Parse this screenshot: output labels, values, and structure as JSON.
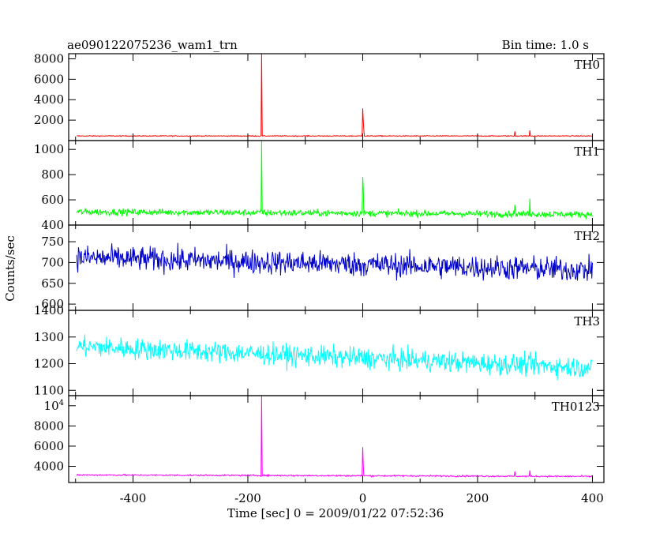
{
  "header": {
    "left": "ae090122075236_wam1_trn",
    "right": "Bin time: 1.0 s"
  },
  "chart_data": {
    "type": "line",
    "title": "ae090122075236_wam1_trn",
    "subtitle": "Bin time: 1.0 s",
    "xlabel": "Time [sec] 0 = 2009/01/22 07:52:36",
    "ylabel": "Counts/sec",
    "xlim": [
      -512,
      420
    ],
    "xticks": [
      "-400",
      "-200",
      "0",
      "200",
      "400"
    ],
    "xtick_values": [
      -400,
      -200,
      0,
      200,
      400
    ],
    "panels": [
      {
        "name": "TH0",
        "color": "#ff0000",
        "ylim": [
          0,
          8500
        ],
        "yticks": [
          "2000",
          "4000",
          "6000",
          "8000"
        ],
        "ytick_values": [
          2000,
          4000,
          6000,
          8000
        ],
        "baseline_start": 450,
        "baseline_end": 450,
        "noise": 40,
        "spikes": [
          [
            -176,
            8500
          ],
          [
            0,
            3150
          ],
          [
            1,
            2000
          ],
          [
            2,
            1000
          ],
          [
            265,
            900
          ],
          [
            291,
            1000
          ]
        ]
      },
      {
        "name": "TH1",
        "color": "#00ff00",
        "ylim": [
          400,
          1070
        ],
        "yticks": [
          "400",
          "600",
          "800",
          "1000"
        ],
        "ytick_values": [
          400,
          600,
          800,
          1000
        ],
        "baseline_start": 505,
        "baseline_end": 485,
        "noise": 25,
        "spikes": [
          [
            -176,
            1070
          ],
          [
            0,
            780
          ],
          [
            1,
            700
          ],
          [
            265,
            560
          ],
          [
            291,
            610
          ]
        ]
      },
      {
        "name": "TH2",
        "color": "#0000cd",
        "ylim": [
          585,
          790
        ],
        "yticks": [
          "600",
          "650",
          "700",
          "750"
        ],
        "ytick_values": [
          600,
          650,
          700,
          750
        ],
        "baseline_start": 712,
        "baseline_end": 682,
        "noise": 28,
        "spikes": []
      },
      {
        "name": "TH3",
        "color": "#00ffff",
        "ylim": [
          1080,
          1400
        ],
        "yticks": [
          "1100",
          "1200",
          "1300",
          "1400"
        ],
        "ytick_values": [
          1100,
          1200,
          1300,
          1400
        ],
        "baseline_start": 1265,
        "baseline_end": 1185,
        "noise": 38,
        "spikes": []
      },
      {
        "name": "TH0123",
        "color": "#ff00ff",
        "ylim": [
          2400,
          11000
        ],
        "yticks": [
          "4000",
          "6000",
          "8000",
          "10^4"
        ],
        "ytick_values": [
          4000,
          6000,
          8000,
          10000
        ],
        "baseline_start": 3150,
        "baseline_end": 3000,
        "noise": 70,
        "spikes": [
          [
            -176,
            11000
          ],
          [
            0,
            5900
          ],
          [
            1,
            4200
          ],
          [
            265,
            3500
          ],
          [
            291,
            3600
          ]
        ]
      }
    ]
  }
}
